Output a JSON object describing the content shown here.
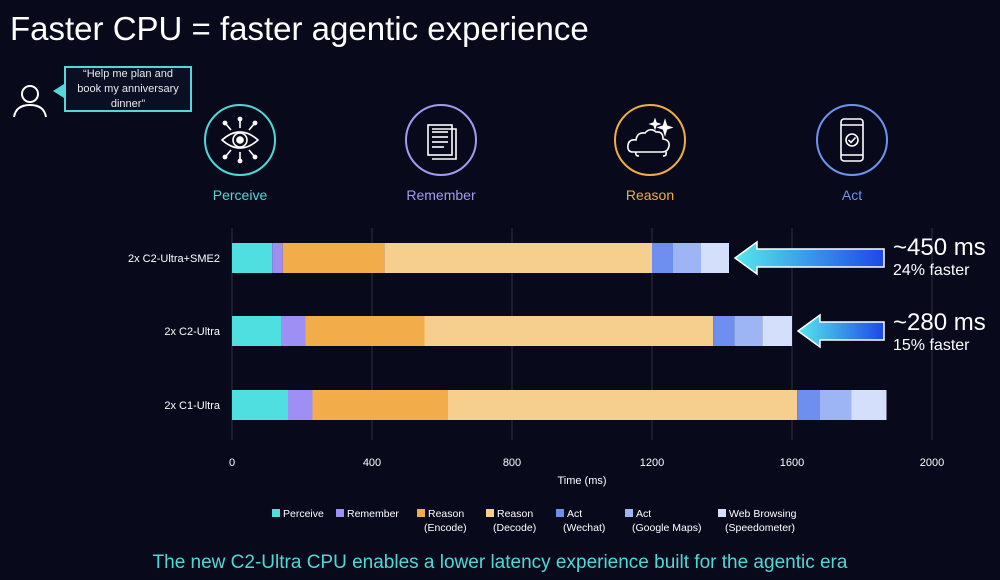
{
  "title": "Faster CPU = faster agentic experience",
  "speech_bubble": "“Help me plan and book my anniversary dinner”",
  "stages": [
    {
      "label": "Perceive",
      "icon": "eye-network-icon",
      "color": "#4fd9d6"
    },
    {
      "label": "Remember",
      "icon": "document-stack-icon",
      "color": "#a39bf2"
    },
    {
      "label": "Reason",
      "icon": "cloud-sparkle-icon",
      "color": "#f2ad40"
    },
    {
      "label": "Act",
      "icon": "phone-check-icon",
      "color": "#6f93f2"
    }
  ],
  "callouts": [
    {
      "main": "~450 ms",
      "sub": "24% faster"
    },
    {
      "main": "~280 ms",
      "sub": "15% faster"
    }
  ],
  "footer": "The new C2-Ultra CPU enables a lower latency experience built for the agentic era",
  "chart_data": {
    "type": "bar",
    "orientation": "horizontal",
    "stacked": true,
    "categories": [
      "2x C2-Ultra+SME2",
      "2x C2-Ultra",
      "2x C1-Ultra"
    ],
    "xlabel": "Time (ms)",
    "ylabel": "",
    "xlim": [
      0,
      2000
    ],
    "xticks": [
      0,
      400,
      800,
      1200,
      1600,
      2000
    ],
    "grid": "vertical",
    "legend_position": "bottom",
    "series": [
      {
        "name": [
          "Perceive"
        ],
        "color": "#4fdfe0",
        "values": [
          115,
          140,
          160
        ]
      },
      {
        "name": [
          "Remember"
        ],
        "color": "#9d8ff4",
        "values": [
          30,
          70,
          70
        ]
      },
      {
        "name": [
          "Reason",
          "(Encode)"
        ],
        "color": "#f2ad4a",
        "values": [
          290,
          340,
          385
        ]
      },
      {
        "name": [
          "Reason",
          "(Decode)"
        ],
        "color": "#f6cf8e",
        "values": [
          765,
          825,
          1000
        ]
      },
      {
        "name": [
          "Act",
          "(Wechat)"
        ],
        "color": "#6f8ff0",
        "values": [
          60,
          60,
          65
        ]
      },
      {
        "name": [
          "Act",
          "(Google Maps)"
        ],
        "color": "#9db4f5",
        "values": [
          80,
          80,
          90
        ]
      },
      {
        "name": [
          "Web Browsing",
          "(Speedometer)"
        ],
        "color": "#d4dffb",
        "values": [
          80,
          85,
          100
        ]
      }
    ]
  }
}
